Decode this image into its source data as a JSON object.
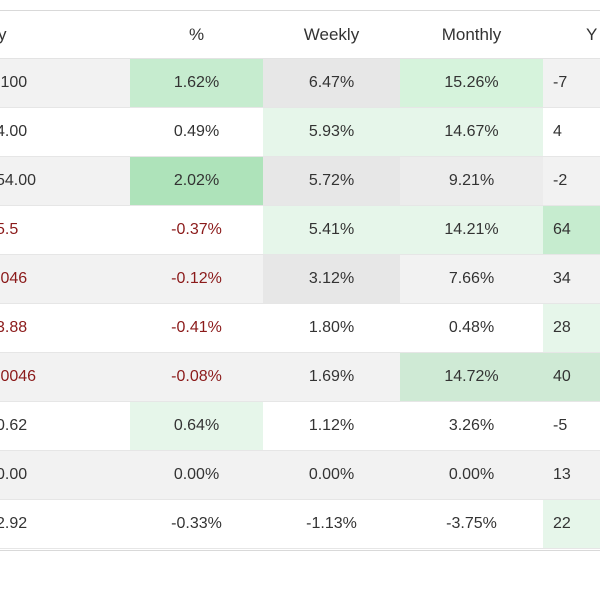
{
  "header": {
    "col0": "y",
    "col1": "%",
    "col2": "Weekly",
    "col3": "Monthly",
    "col4": "Y"
  },
  "rows": [
    {
      "price": ",100",
      "pct": "1.62%",
      "weekly": "6.47%",
      "monthly": "15.26%",
      "ytd": "-7"
    },
    {
      "price": "4.00",
      "pct": "0.49%",
      "weekly": "5.93%",
      "monthly": "14.67%",
      "ytd": "4"
    },
    {
      "price": "54.00",
      "pct": "2.02%",
      "weekly": "5.72%",
      "monthly": "9.21%",
      "ytd": "-2"
    },
    {
      "price": "5.5",
      "pct": "-0.37%",
      "weekly": "5.41%",
      "monthly": "14.21%",
      "ytd": "64"
    },
    {
      "price": ".046",
      "pct": "-0.12%",
      "weekly": "3.12%",
      "monthly": "7.66%",
      "ytd": "34"
    },
    {
      "price": "3.88",
      "pct": "-0.41%",
      "weekly": "1.80%",
      "monthly": "0.48%",
      "ytd": "28"
    },
    {
      "price": ".0046",
      "pct": "-0.08%",
      "weekly": "1.69%",
      "monthly": "14.72%",
      "ytd": "40"
    },
    {
      "price": "0.62",
      "pct": "0.64%",
      "weekly": "1.12%",
      "monthly": "3.26%",
      "ytd": "-5"
    },
    {
      "price": "0.00",
      "pct": "0.00%",
      "weekly": "0.00%",
      "monthly": "0.00%",
      "ytd": "13"
    },
    {
      "price": "2.92",
      "pct": "-0.33%",
      "weekly": "-1.13%",
      "monthly": "-3.75%",
      "ytd": "22"
    }
  ],
  "colors": {
    "negative_text": "#8b1a1a",
    "positive_strong": "#aee3ba",
    "positive_medium": "#c6eccf",
    "positive_light": "#e6f6ea",
    "neutral": "#e7e7e7"
  }
}
